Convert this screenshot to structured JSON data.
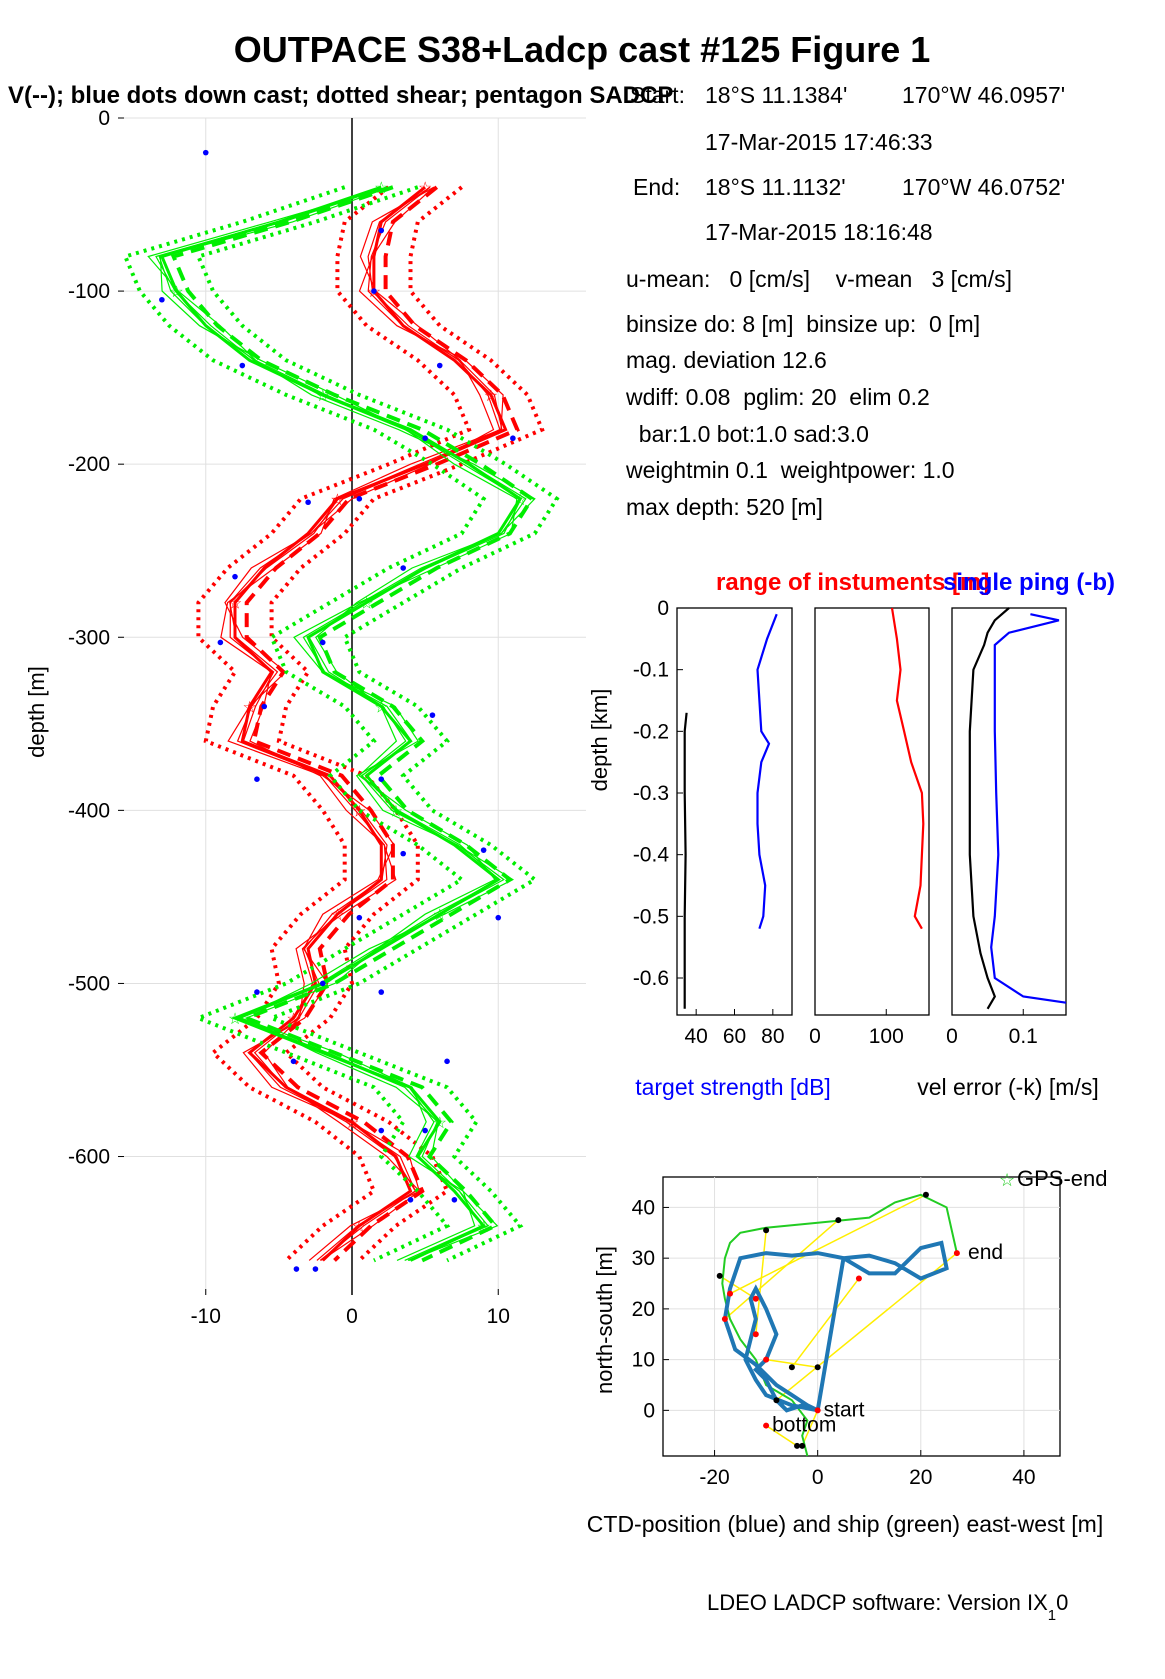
{
  "figure": {
    "title": "OUTPACE S38+Ladcp cast #125  Figure 1",
    "subtitle": "V(--); blue dots down cast; dotted shear; pentagon SADCP",
    "footer": "LDEO LADCP software: Version IX",
    "footer_subscript": "1",
    "footer_suffix": "0"
  },
  "info": {
    "start_label": "Start:",
    "start_lat": "18°S 11.1384'",
    "start_lon": "170°W 46.0957'",
    "start_time": "17-Mar-2015 17:46:33",
    "end_label": "End:",
    "end_lat": "18°S 11.1132'",
    "end_lon": "170°W 46.0752'",
    "end_time": "17-Mar-2015 18:16:48",
    "lines": [
      "u-mean:   0 [cm/s]    v-mean   3 [cm/s]",
      "binsize do: 8 [m]  binsize up:  0 [m]",
      "mag. deviation 12.6",
      "wdiff: 0.08  pglim: 20  elim 0.2",
      "  bar:1.0 bot:1.0 sad:3.0",
      "weightmin 0.1  weightpower: 1.0",
      "max depth: 520 [m]"
    ]
  },
  "colors": {
    "u": "#ff0000",
    "v": "#00ee00",
    "target": "#0000ff",
    "ctd": "#1f77b4",
    "ship": "#22cc22",
    "link": "#ffee00",
    "black": "#000000"
  },
  "chart_data": [
    {
      "id": "velocity-profile",
      "type": "line",
      "xlabel": "",
      "ylabel": "depth [m]",
      "xlim": [
        -16,
        16
      ],
      "ylim": [
        -680,
        0
      ],
      "xticks": [
        -10,
        0,
        10
      ],
      "yticks": [
        0,
        -100,
        -200,
        -300,
        -400,
        -500,
        -600
      ],
      "grid": true,
      "depth": [
        -40,
        -60,
        -80,
        -100,
        -120,
        -140,
        -160,
        -180,
        -200,
        -220,
        -240,
        -260,
        -280,
        -300,
        -320,
        -340,
        -360,
        -380,
        -400,
        -420,
        -440,
        -460,
        -480,
        -500,
        -520,
        -540,
        -560,
        -580,
        -600,
        -620,
        -640,
        -660
      ],
      "series": [
        {
          "component": "u",
          "values": [
            5,
            2,
            1.5,
            1.5,
            3.5,
            7,
            9.5,
            10.5,
            5,
            -1,
            -3,
            -6,
            -8,
            -8,
            -5.5,
            -7,
            -7.5,
            -1.5,
            0.5,
            2,
            2,
            -1,
            -3,
            -2.5,
            -4,
            -7,
            -4.5,
            0,
            3,
            4,
            0.5,
            -2
          ]
        },
        {
          "component": "v",
          "values": [
            2,
            -5,
            -13,
            -12,
            -10,
            -7,
            -2,
            4,
            8,
            11.5,
            10,
            5,
            1,
            -3,
            -2,
            2,
            4,
            1,
            3,
            7,
            10,
            6,
            2,
            -2,
            -8,
            -2,
            4,
            6,
            4.5,
            7,
            9,
            4
          ]
        }
      ],
      "down_cast_dots": [
        {
          "x": -10,
          "y": -20
        },
        {
          "x": 2,
          "y": -65
        },
        {
          "x": -13,
          "y": -105
        },
        {
          "x": 1.5,
          "y": -100
        },
        {
          "x": -7.5,
          "y": -143
        },
        {
          "x": 6,
          "y": -143
        },
        {
          "x": 5,
          "y": -185
        },
        {
          "x": 11,
          "y": -185
        },
        {
          "x": -3,
          "y": -222
        },
        {
          "x": 0.5,
          "y": -220
        },
        {
          "x": -8,
          "y": -265
        },
        {
          "x": 3.5,
          "y": -260
        },
        {
          "x": -9,
          "y": -303
        },
        {
          "x": -2,
          "y": -303
        },
        {
          "x": -6,
          "y": -340
        },
        {
          "x": 5.5,
          "y": -345
        },
        {
          "x": -6.5,
          "y": -382
        },
        {
          "x": 2,
          "y": -382
        },
        {
          "x": 3.5,
          "y": -425
        },
        {
          "x": 9,
          "y": -423
        },
        {
          "x": 0.5,
          "y": -462
        },
        {
          "x": 10,
          "y": -462
        },
        {
          "x": -2,
          "y": -500
        },
        {
          "x": 2,
          "y": -505
        },
        {
          "x": -6.5,
          "y": -505
        },
        {
          "x": -4,
          "y": -545
        },
        {
          "x": 6.5,
          "y": -545
        },
        {
          "x": 2,
          "y": -585
        },
        {
          "x": 5,
          "y": -585
        },
        {
          "x": 4,
          "y": -625
        },
        {
          "x": 7,
          "y": -625
        },
        {
          "x": -2.5,
          "y": -665
        },
        {
          "x": -3.8,
          "y": -665
        }
      ]
    },
    {
      "id": "target-strength",
      "type": "line",
      "title": "range of instuments [m]",
      "xlabel": "target strength [dB]",
      "ylabel": "depth [km]",
      "xlim": [
        30,
        90
      ],
      "ylim": [
        -0.66,
        0
      ],
      "xticks": [
        40,
        60,
        80
      ],
      "yticks": [
        0,
        -0.1,
        -0.2,
        -0.3,
        -0.4,
        -0.5,
        -0.6
      ],
      "series": [
        {
          "component": "target",
          "depth": [
            -0.01,
            -0.05,
            -0.1,
            -0.15,
            -0.2,
            -0.22,
            -0.25,
            -0.3,
            -0.35,
            -0.4,
            -0.45,
            -0.5,
            -0.52
          ],
          "values": [
            82,
            77,
            72,
            73,
            74,
            78,
            74,
            72,
            72,
            73,
            76,
            75,
            73
          ]
        },
        {
          "component": "black",
          "depth": [
            -0.17,
            -0.2,
            -0.3,
            -0.4,
            -0.5,
            -0.6,
            -0.65
          ],
          "values": [
            35,
            34,
            34,
            34.5,
            34,
            34,
            34
          ]
        }
      ]
    },
    {
      "id": "range",
      "type": "line",
      "xlim": [
        0,
        160
      ],
      "ylim": [
        -0.66,
        0
      ],
      "xticks": [
        0,
        100
      ],
      "series": [
        {
          "component": "u",
          "depth": [
            0,
            -0.05,
            -0.1,
            -0.15,
            -0.2,
            -0.25,
            -0.3,
            -0.35,
            -0.4,
            -0.45,
            -0.5,
            -0.52
          ],
          "values": [
            108,
            115,
            120,
            115,
            125,
            135,
            150,
            152,
            150,
            148,
            140,
            150
          ]
        }
      ]
    },
    {
      "id": "vel-error",
      "type": "line",
      "title": "single ping (-b)",
      "xlabel": "vel error (-k) [m/s]",
      "xlim": [
        0,
        0.16
      ],
      "ylim": [
        -0.66,
        0
      ],
      "xticks": [
        0,
        0.1
      ],
      "series": [
        {
          "component": "target",
          "depth": [
            -0.01,
            -0.02,
            -0.04,
            -0.06,
            -0.1,
            -0.2,
            -0.3,
            -0.4,
            -0.5,
            -0.55,
            -0.6,
            -0.63,
            -0.64
          ],
          "values": [
            0.11,
            0.15,
            0.08,
            0.06,
            0.06,
            0.06,
            0.062,
            0.065,
            0.06,
            0.055,
            0.06,
            0.1,
            0.16
          ]
        },
        {
          "component": "black",
          "depth": [
            0,
            -0.02,
            -0.04,
            -0.06,
            -0.1,
            -0.2,
            -0.3,
            -0.4,
            -0.5,
            -0.56,
            -0.6,
            -0.63,
            -0.65
          ],
          "values": [
            0.08,
            0.06,
            0.05,
            0.045,
            0.03,
            0.025,
            0.025,
            0.025,
            0.03,
            0.04,
            0.05,
            0.06,
            0.05
          ]
        }
      ]
    },
    {
      "id": "position",
      "type": "line",
      "xlabel": "CTD-position (blue) and ship (green) east-west [m]",
      "ylabel": "north-south [m]",
      "xlim": [
        -30,
        47
      ],
      "ylim": [
        -9,
        46
      ],
      "xticks": [
        -20,
        0,
        20,
        40
      ],
      "yticks": [
        40,
        30,
        20,
        10,
        0
      ],
      "legend": "GPS-end",
      "labels": [
        {
          "text": "start",
          "x": 0,
          "y": 0
        },
        {
          "text": "bottom",
          "x": -10,
          "y": -3
        },
        {
          "text": "end",
          "x": 28,
          "y": 31
        }
      ],
      "ctd": {
        "x": [
          0,
          -5,
          -10,
          -12,
          -14,
          -13,
          -12,
          -13,
          -12,
          -10,
          -8,
          -10,
          -12,
          -10,
          -8,
          -6,
          -3,
          0,
          5,
          10,
          15,
          20,
          25,
          24,
          20,
          15,
          10,
          5,
          0,
          -5,
          -10,
          -15,
          -17,
          -18,
          -16,
          -12,
          -8,
          -5,
          -2,
          0
        ],
        "y": [
          0,
          1,
          3,
          6,
          10,
          14,
          18,
          22,
          24,
          20,
          15,
          10,
          8,
          6,
          2,
          0,
          1,
          0,
          30,
          30.5,
          29,
          26,
          28,
          33,
          32,
          27,
          27,
          30,
          31,
          30.5,
          31,
          30,
          24,
          18,
          12,
          9,
          5,
          3,
          1,
          0
        ]
      },
      "ship": {
        "x": [
          -2,
          -3,
          -2,
          -5,
          -10,
          -12,
          -15,
          -17,
          -18,
          -18.5,
          -18,
          -17,
          -15,
          -10,
          0,
          10,
          15,
          20,
          25,
          27
        ],
        "y": [
          -9,
          -5,
          -2,
          2,
          5,
          10,
          14,
          18,
          22,
          25,
          30,
          33,
          35,
          36,
          37,
          38,
          41,
          42.5,
          40,
          31
        ]
      },
      "ctd_markers": [
        {
          "x": 0,
          "y": 0
        },
        {
          "x": -10,
          "y": -3
        },
        {
          "x": -12,
          "y": 15
        },
        {
          "x": -18,
          "y": 18
        },
        {
          "x": -17,
          "y": 23
        },
        {
          "x": -12,
          "y": 22
        },
        {
          "x": -10,
          "y": 10
        },
        {
          "x": 8,
          "y": 26
        },
        {
          "x": 27,
          "y": 31
        }
      ],
      "ship_markers": [
        {
          "x": -3,
          "y": -7
        },
        {
          "x": -4,
          "y": -7
        },
        {
          "x": -10,
          "y": 35.5
        },
        {
          "x": 4,
          "y": 37.5
        },
        {
          "x": 21,
          "y": 42.5
        },
        {
          "x": -19,
          "y": 26.5
        },
        {
          "x": 0,
          "y": 8.5
        },
        {
          "x": -5,
          "y": 8.5
        },
        {
          "x": -8,
          "y": 2
        }
      ]
    }
  ]
}
